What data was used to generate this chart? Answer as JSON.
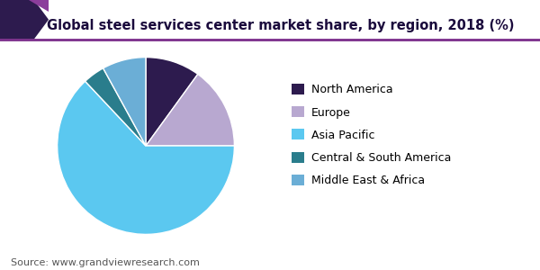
{
  "title": "Global steel services center market share, by region, 2018 (%)",
  "labels": [
    "North America",
    "Europe",
    "Asia Pacific",
    "Central & South America",
    "Middle East & Africa"
  ],
  "values": [
    10.0,
    15.0,
    63.0,
    4.0,
    8.0
  ],
  "colors": [
    "#2d1b4e",
    "#b8a8d0",
    "#5bc8f0",
    "#2a7d8c",
    "#6baed6"
  ],
  "startangle": 90,
  "counterclock": false,
  "source_text": "Source: www.grandviewresearch.com",
  "title_fontsize": 10.5,
  "title_color": "#1a0a3c",
  "legend_fontsize": 9,
  "source_fontsize": 8,
  "bg_color": "#ffffff",
  "header_line_color": "#7b2d8b",
  "header_shape_color1": "#2d1b4e",
  "header_shape_color2": "#8b3d9b"
}
